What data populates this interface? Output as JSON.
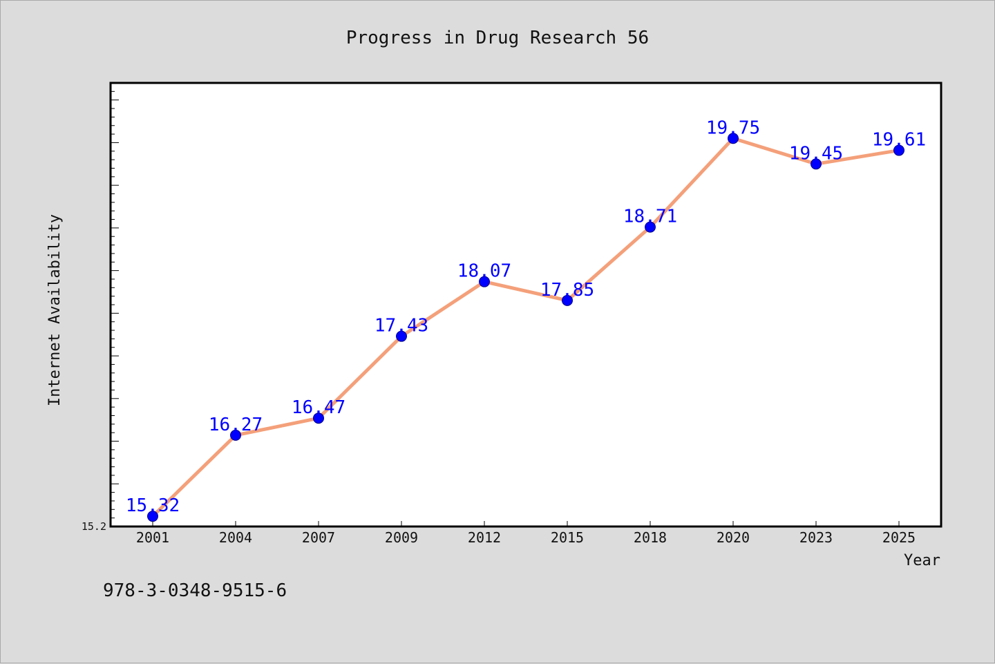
{
  "chart_data": {
    "type": "line",
    "title": "Progress in Drug Research 56",
    "xlabel": "Year",
    "ylabel": "Internet Availability",
    "categories": [
      "2001",
      "2004",
      "2007",
      "2009",
      "2012",
      "2015",
      "2018",
      "2020",
      "2023",
      "2025"
    ],
    "series": [
      {
        "values": [
          15.32,
          16.27,
          16.47,
          17.43,
          18.07,
          17.85,
          18.71,
          19.75,
          19.45,
          19.61
        ],
        "data_labels": [
          "15.32",
          "16.27",
          "16.47",
          "17.43",
          "18.07",
          "17.85",
          "18.71",
          "19.75",
          "19.45",
          "19.61"
        ]
      }
    ],
    "y_tick_labels": [
      "15.2"
    ],
    "ylim": [
      15.2,
      20.4
    ],
    "grid": false,
    "colors": {
      "line": "#f4a07a",
      "marker": "#0000ff",
      "data_label": "#0000ff"
    }
  },
  "footer": {
    "isbn": "978-3-0348-9515-6"
  }
}
